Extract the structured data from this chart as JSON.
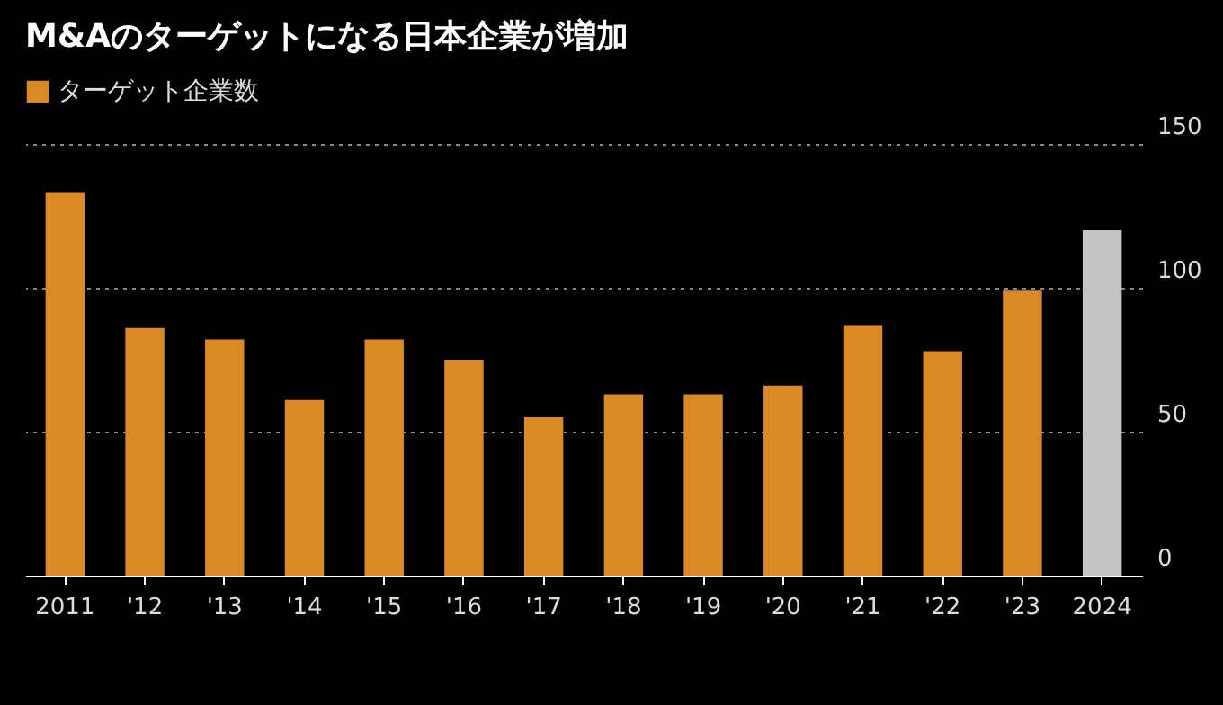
{
  "chart_data": {
    "type": "bar",
    "title": "M&Aのターゲットになる日本企業が増加",
    "categories": [
      "2011",
      "'12",
      "'13",
      "'14",
      "'15",
      "'16",
      "'17",
      "'18",
      "'19",
      "'20",
      "'21",
      "'22",
      "'23",
      "2024"
    ],
    "series": [
      {
        "name": "ターゲット企業数",
        "color": "#d98a26",
        "values": [
          133,
          86,
          82,
          61,
          82,
          75,
          55,
          63,
          63,
          66,
          87,
          78,
          99,
          120
        ],
        "colors": [
          "#d98a26",
          "#d98a26",
          "#d98a26",
          "#d98a26",
          "#d98a26",
          "#d98a26",
          "#d98a26",
          "#d98a26",
          "#d98a26",
          "#d98a26",
          "#d98a26",
          "#d98a26",
          "#d98a26",
          "#c4c4c4"
        ]
      }
    ],
    "ylim": [
      0,
      150
    ],
    "yticks": [
      0,
      50,
      100,
      150
    ],
    "grid": "y",
    "legend": "top left"
  }
}
